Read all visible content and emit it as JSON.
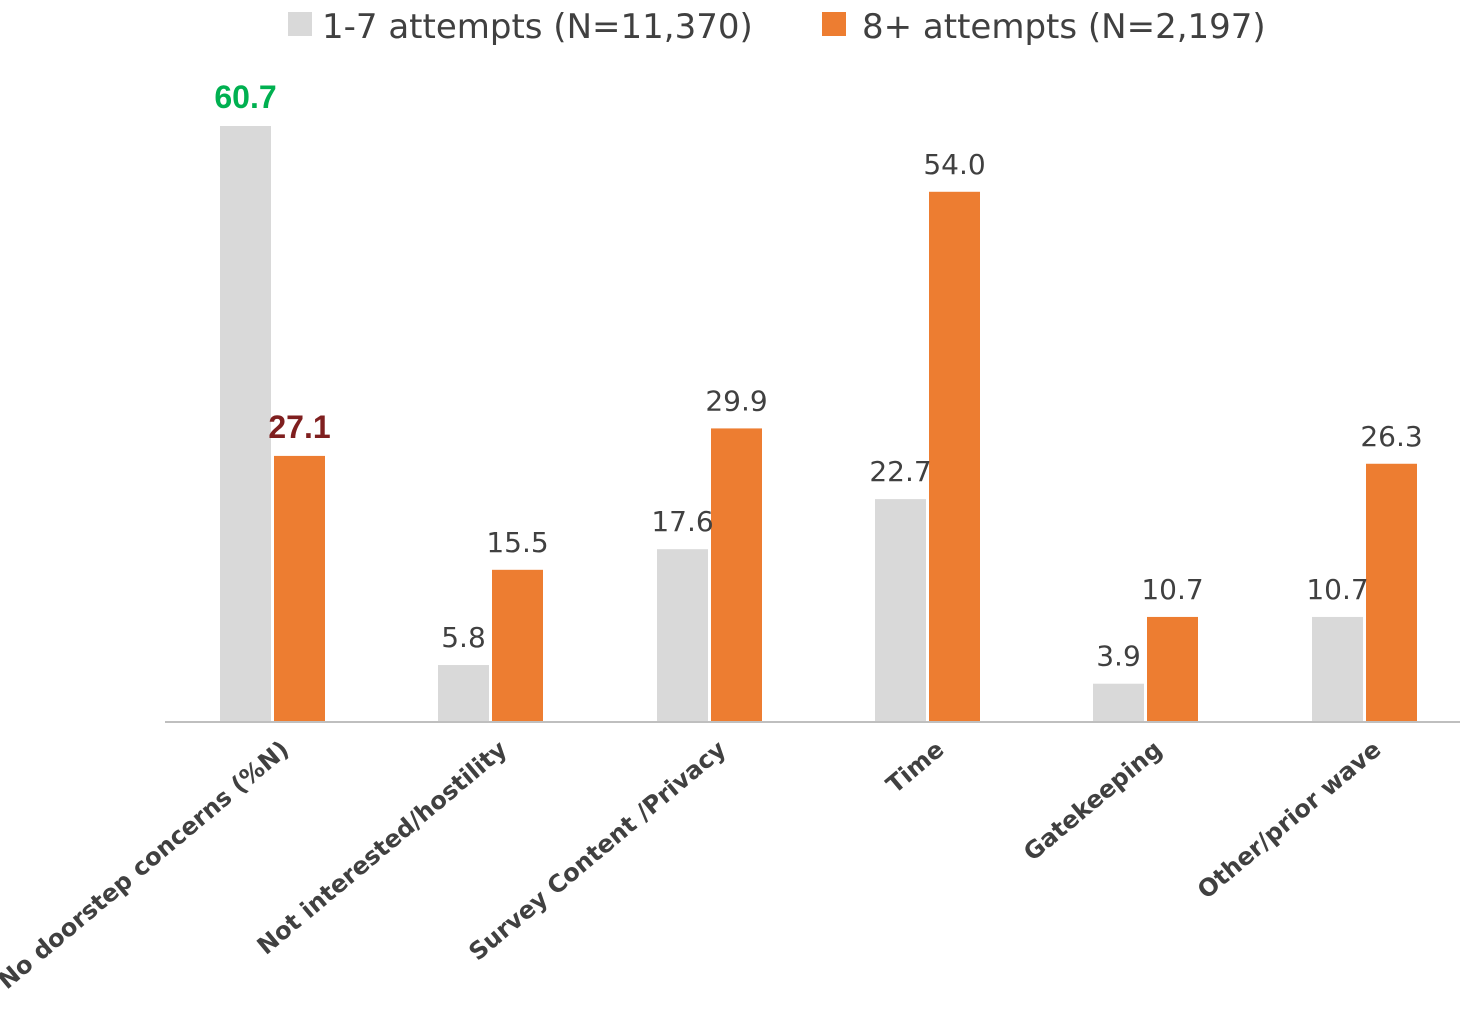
{
  "chart_data": {
    "type": "bar",
    "categories": [
      "No doorstep concerns (%N)",
      "Not interested/hostility",
      "Survey Content /Privacy",
      "Time",
      "Gatekeeping",
      "Other/prior wave"
    ],
    "series": [
      {
        "name": "1-7 attempts (N=11,370)",
        "color": "#d9d9d9",
        "values": [
          60.7,
          5.8,
          17.6,
          22.7,
          3.9,
          10.7
        ],
        "label_text": [
          "60.7",
          "5.8",
          "17.6",
          "22.7",
          "3.9",
          "10.7"
        ]
      },
      {
        "name": "8+ attempts (N=2,197)",
        "color": "#ed7d31",
        "values": [
          27.1,
          15.5,
          29.9,
          54.0,
          10.7,
          26.3
        ],
        "label_text": [
          "27.1",
          "15.5",
          "29.9",
          "54.0",
          "10.7",
          "26.3"
        ]
      }
    ],
    "highlight_labels": {
      "first_series_first_color": "#00b050",
      "second_series_first_color": "#7f1f1f"
    },
    "ylim": [
      0,
      62
    ],
    "grid": false,
    "legend_position": "top-center",
    "axis_color": "#bfbfbf"
  }
}
